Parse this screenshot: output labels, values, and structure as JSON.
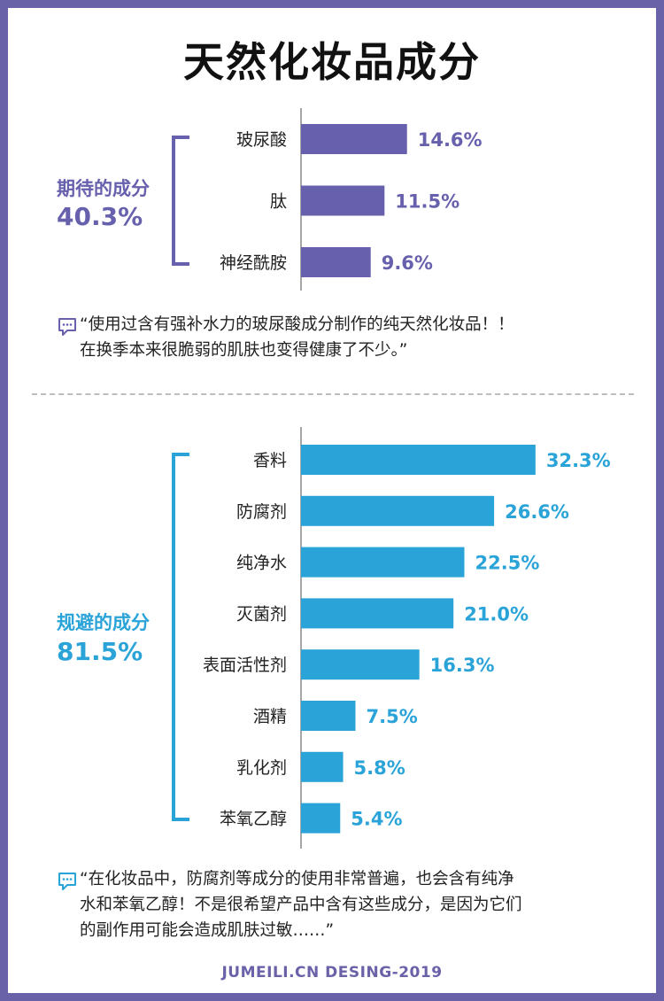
{
  "title": "天然化妆品成分",
  "colors": {
    "expected": "#6760ad",
    "avoid": "#2aa3d8",
    "frame": "#6a62a9"
  },
  "groups": {
    "expected": {
      "label": "期待的成分",
      "total": "40.3%"
    },
    "avoid": {
      "label": "规避的成分",
      "total": "81.5%"
    }
  },
  "quotes": {
    "q1": [
      "“使用过含有强补水力的玻尿酸成分制作的纯天然化妆品！！",
      "在换季本来很脆弱的肌肤也变得健康了不少。”"
    ],
    "q2": [
      "“在化妆品中，防腐剂等成分的使用非常普遍，也会含有纯净",
      "水和苯氧乙醇！不是很希望产品中含有这些成分，是因为它们",
      "的副作用可能会造成肌肤过敏……”"
    ]
  },
  "footer": "JUMEILI.CN DESING-2019",
  "chart_data": [
    {
      "type": "bar",
      "orientation": "horizontal",
      "title": "期待的成分 40.3%",
      "categories": [
        "玻尿酸",
        "肽",
        "神经酰胺"
      ],
      "values": [
        14.6,
        11.5,
        9.6
      ],
      "labels": [
        "14.6%",
        "11.5%",
        "9.6%"
      ],
      "unit": "%"
    },
    {
      "type": "bar",
      "orientation": "horizontal",
      "title": "规避的成分 81.5%",
      "categories": [
        "香料",
        "防腐剂",
        "纯净水",
        "灭菌剂",
        "表面活性剂",
        "酒精",
        "乳化剂",
        "苯氧乙醇"
      ],
      "values": [
        32.3,
        26.6,
        22.5,
        21.0,
        16.3,
        7.5,
        5.8,
        5.4
      ],
      "labels": [
        "32.3%",
        "26.6%",
        "22.5%",
        "21.0%",
        "16.3%",
        "7.5%",
        "5.8%",
        "5.4%"
      ],
      "unit": "%"
    }
  ]
}
